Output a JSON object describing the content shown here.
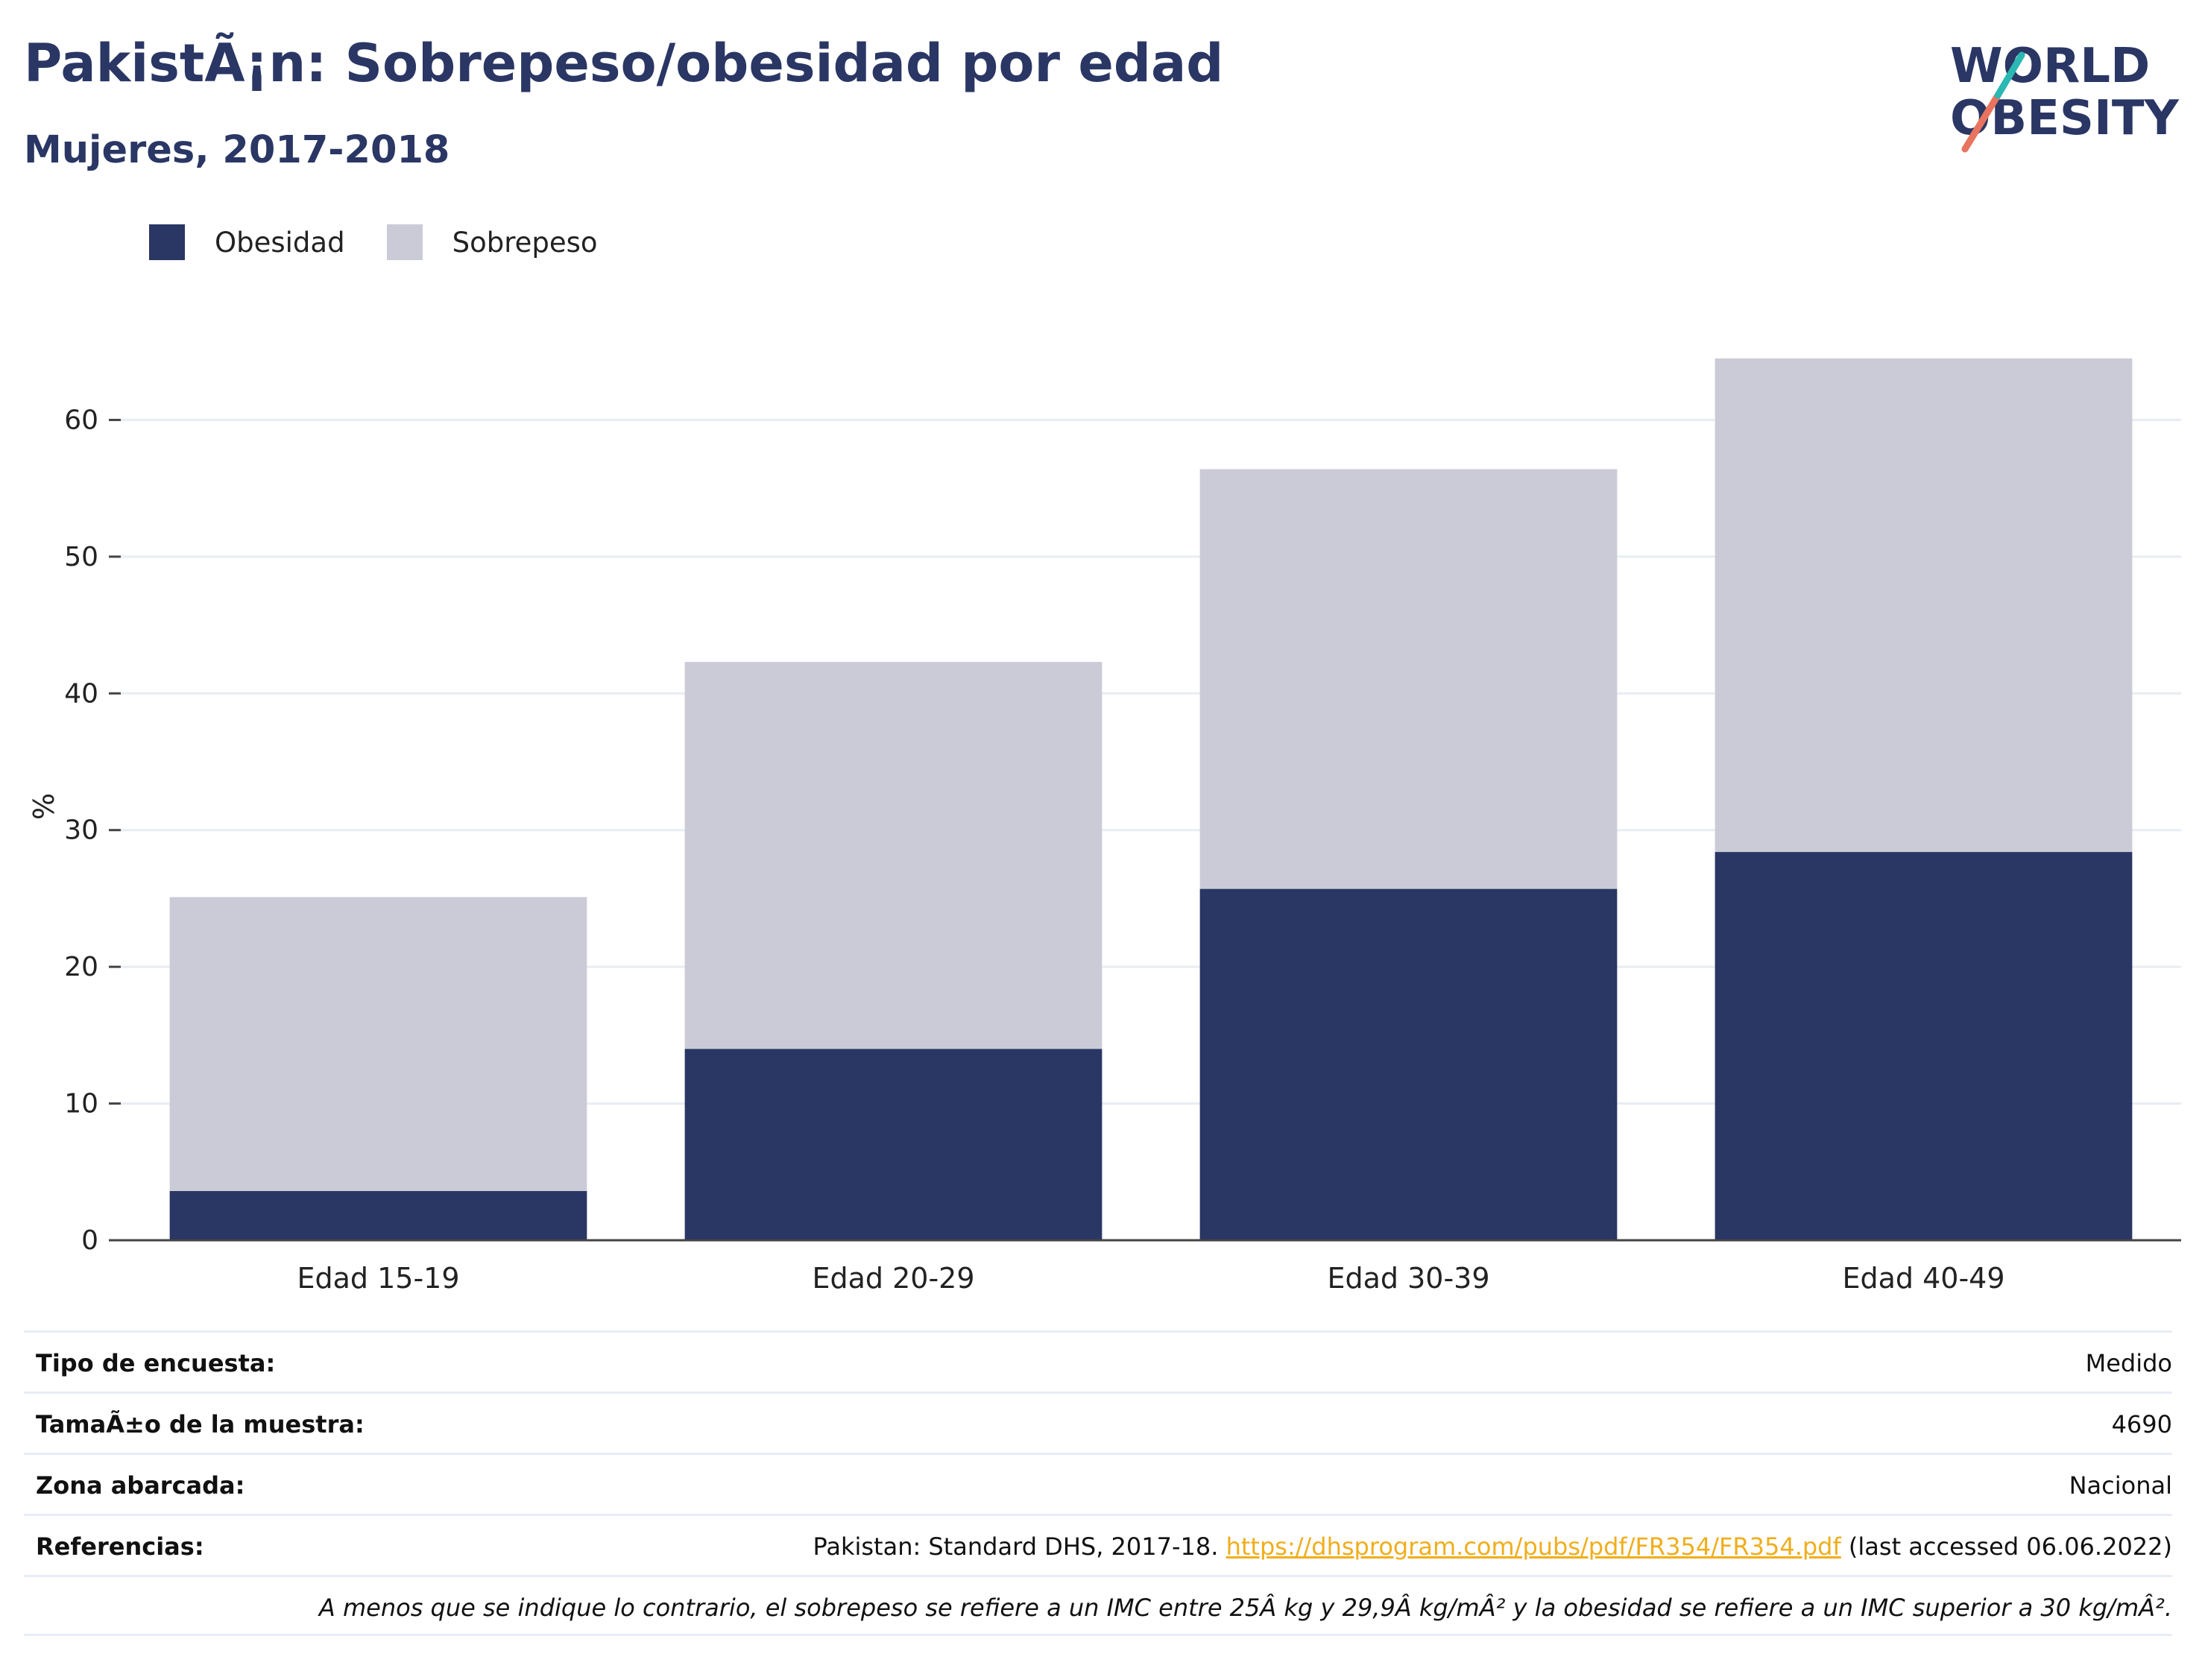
{
  "header": {
    "title": "PakistÃ¡n: Sobrepeso/obesidad por edad",
    "subtitle": "Mujeres, 2017-2018"
  },
  "logo": {
    "line1": "WORLD",
    "line2": "OBESITY"
  },
  "colors": {
    "obesity": "#2a3664",
    "overweight": "#cacbd6",
    "title": "#2a3664",
    "link": "#f0ae1c",
    "grid": "#e8ecf3",
    "logo_teal": "#2bb8b3",
    "logo_red": "#e8735e"
  },
  "legend": [
    {
      "label": "Obesidad",
      "color": "#2a3664"
    },
    {
      "label": "Sobrepeso",
      "color": "#cacbd6"
    }
  ],
  "chart_data": {
    "type": "bar",
    "stacked": true,
    "categories": [
      "Edad 15-19",
      "Edad 20-29",
      "Edad 30-39",
      "Edad 40-49"
    ],
    "series": [
      {
        "name": "Obesidad",
        "values": [
          3.6,
          14.0,
          25.7,
          28.4
        ]
      },
      {
        "name": "Sobrepeso",
        "values": [
          21.5,
          28.3,
          30.7,
          36.1
        ]
      }
    ],
    "ylabel": "%",
    "ylim": [
      0,
      70
    ],
    "yticks": [
      0,
      10,
      20,
      30,
      40,
      50,
      60
    ],
    "grid": true,
    "legend_position": "top-left"
  },
  "info": {
    "rows": [
      {
        "label": "Tipo de encuesta:",
        "value": "Medido"
      },
      {
        "label": "TamaÃ±o de la muestra:",
        "value": "4690"
      },
      {
        "label": "Zona abarcada:",
        "value": "Nacional"
      }
    ],
    "references": {
      "label": "Referencias:",
      "text_before": "Pakistan: Standard DHS, 2017-18. ",
      "link": "https://dhsprogram.com/pubs/pdf/FR354/FR354.pdf",
      "text_after": " (last accessed 06.06.2022)"
    },
    "note": "A menos que se indique lo contrario, el sobrepeso se refiere a un IMC entre 25Â kg y 29,9Â kg/mÂ² y la obesidad se refiere a un IMC superior a 30 kg/mÂ²."
  }
}
